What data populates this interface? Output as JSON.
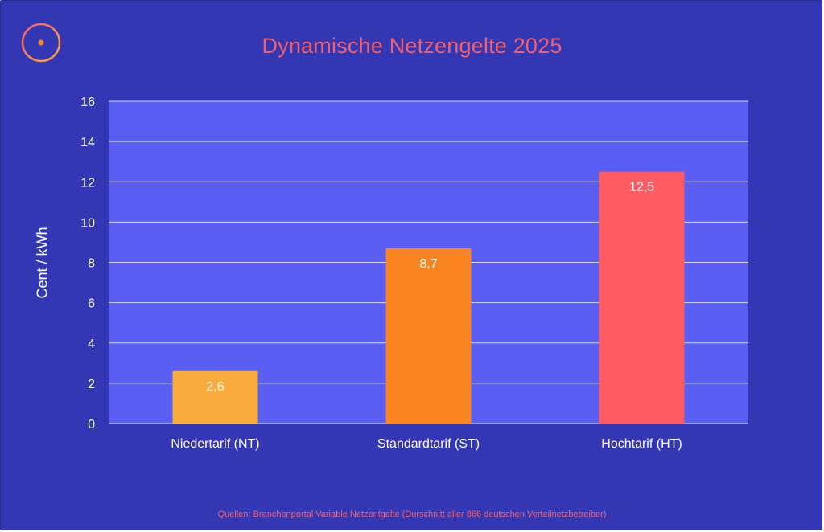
{
  "chart_data": {
    "type": "bar",
    "title": "Dynamische Netzengelte 2025",
    "xlabel": "",
    "ylabel": "Cent / kWh",
    "categories": [
      "Niedertarif (NT)",
      "Standardtarif (ST)",
      "Hochtarif (HT)"
    ],
    "values": [
      2.6,
      8.7,
      12.5
    ],
    "value_labels": [
      "2,6",
      "8,7",
      "12,5"
    ],
    "bar_colors": [
      "#f9ac3e",
      "#f98420",
      "#fe5b63"
    ],
    "ylim": [
      0,
      16
    ],
    "yticks": [
      0,
      2,
      4,
      6,
      8,
      10,
      12,
      14,
      16
    ],
    "grid": true,
    "source": "Quellen: Branchenportal Variable Netzentgelte (Durschnitt aller 866 deutschen Verteilnetzbetreiber)"
  },
  "colors": {
    "background": "#3437b3",
    "plot_area": "#5b5ef2",
    "accent": "#f2606f",
    "gridline": "#ffffff",
    "text": "#ffffff"
  },
  "logo": {
    "icon": "circle-dot-logo-icon"
  }
}
